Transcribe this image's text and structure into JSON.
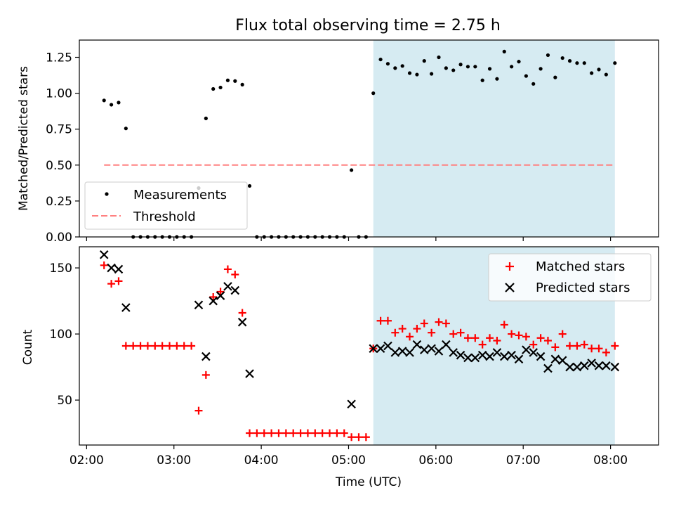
{
  "title": "Flux total observing time = 2.75 h",
  "chart_data": [
    {
      "type": "scatter",
      "ylabel": "Matched/Predicted stars",
      "ylim": [
        0,
        1.37
      ],
      "yticks": [
        "0.00",
        "0.25",
        "0.50",
        "0.75",
        "1.00",
        "1.25"
      ],
      "ytick_values": [
        0,
        0.25,
        0.5,
        0.75,
        1.0,
        1.25
      ],
      "legend": {
        "location": "lower left",
        "measurements_label": "Measurements",
        "threshold_label": "Threshold"
      },
      "threshold": {
        "value": 0.5,
        "x_start": "02:12",
        "x_end": "08:03",
        "color": "#ff8080"
      },
      "shaded_interval": {
        "start": "05:17",
        "end": "08:03",
        "color": "#add8e6"
      },
      "series": [
        {
          "name": "Measurements",
          "color": "#000000",
          "points": [
            [
              "02:12",
              0.95
            ],
            [
              "02:17",
              0.92
            ],
            [
              "02:22",
              0.935
            ],
            [
              "02:27",
              0.755
            ],
            [
              "02:32",
              0.0
            ],
            [
              "02:37",
              0.0
            ],
            [
              "02:42",
              0.0
            ],
            [
              "02:47",
              0.0
            ],
            [
              "02:52",
              0.0
            ],
            [
              "02:57",
              0.0
            ],
            [
              "03:02",
              0.0
            ],
            [
              "03:07",
              0.0
            ],
            [
              "03:12",
              0.0
            ],
            [
              "03:17",
              0.34
            ],
            [
              "03:22",
              0.825
            ],
            [
              "03:27",
              1.03
            ],
            [
              "03:32",
              1.04
            ],
            [
              "03:37",
              1.09
            ],
            [
              "03:42",
              1.085
            ],
            [
              "03:47",
              1.06
            ],
            [
              "03:52",
              0.355
            ],
            [
              "03:57",
              0.0
            ],
            [
              "04:02",
              0.0
            ],
            [
              "04:07",
              0.0
            ],
            [
              "04:12",
              0.0
            ],
            [
              "04:17",
              0.0
            ],
            [
              "04:22",
              0.0
            ],
            [
              "04:27",
              0.0
            ],
            [
              "04:32",
              0.0
            ],
            [
              "04:37",
              0.0
            ],
            [
              "04:42",
              0.0
            ],
            [
              "04:47",
              0.0
            ],
            [
              "04:52",
              0.0
            ],
            [
              "04:57",
              0.0
            ],
            [
              "05:02",
              0.465
            ],
            [
              "05:07",
              0.0
            ],
            [
              "05:12",
              0.0
            ],
            [
              "05:17",
              1.0
            ],
            [
              "05:22",
              1.235
            ],
            [
              "05:27",
              1.205
            ],
            [
              "05:32",
              1.175
            ],
            [
              "05:37",
              1.19
            ],
            [
              "05:42",
              1.14
            ],
            [
              "05:47",
              1.13
            ],
            [
              "05:52",
              1.225
            ],
            [
              "05:57",
              1.135
            ],
            [
              "06:02",
              1.25
            ],
            [
              "06:07",
              1.175
            ],
            [
              "06:12",
              1.16
            ],
            [
              "06:17",
              1.2
            ],
            [
              "06:22",
              1.185
            ],
            [
              "06:27",
              1.185
            ],
            [
              "06:32",
              1.09
            ],
            [
              "06:37",
              1.17
            ],
            [
              "06:42",
              1.1
            ],
            [
              "06:47",
              1.29
            ],
            [
              "06:52",
              1.185
            ],
            [
              "06:57",
              1.22
            ],
            [
              "07:02",
              1.12
            ],
            [
              "07:07",
              1.065
            ],
            [
              "07:12",
              1.17
            ],
            [
              "07:17",
              1.265
            ],
            [
              "07:22",
              1.11
            ],
            [
              "07:27",
              1.245
            ],
            [
              "07:32",
              1.225
            ],
            [
              "07:37",
              1.21
            ],
            [
              "07:42",
              1.21
            ],
            [
              "07:47",
              1.14
            ],
            [
              "07:52",
              1.165
            ],
            [
              "07:57",
              1.13
            ],
            [
              "08:03",
              1.21
            ]
          ]
        }
      ]
    },
    {
      "type": "scatter",
      "xlabel": "Time (UTC)",
      "ylabel": "Count",
      "ylim": [
        16,
        166
      ],
      "yticks": [
        "50",
        "100",
        "150"
      ],
      "ytick_values": [
        50,
        100,
        150
      ],
      "xticks": [
        "02:00",
        "03:00",
        "04:00",
        "05:00",
        "06:00",
        "07:00",
        "08:00"
      ],
      "xtick_values": [
        "02:00",
        "03:00",
        "04:00",
        "05:00",
        "06:00",
        "07:00",
        "08:00"
      ],
      "xlim": [
        "01:55",
        "08:33"
      ],
      "legend": {
        "location": "upper right",
        "matched_label": "Matched stars",
        "predicted_label": "Predicted stars"
      },
      "shaded_interval": {
        "start": "05:17",
        "end": "08:03",
        "color": "#add8e6"
      },
      "series": [
        {
          "name": "Matched stars",
          "marker": "plus",
          "color": "#ff0000",
          "points": [
            [
              "02:12",
              152
            ],
            [
              "02:17",
              138
            ],
            [
              "02:22",
              140
            ],
            [
              "02:27",
              91
            ],
            [
              "02:32",
              91
            ],
            [
              "02:37",
              91
            ],
            [
              "02:42",
              91
            ],
            [
              "02:47",
              91
            ],
            [
              "02:52",
              91
            ],
            [
              "02:57",
              91
            ],
            [
              "03:02",
              91
            ],
            [
              "03:07",
              91
            ],
            [
              "03:12",
              91
            ],
            [
              "03:17",
              42
            ],
            [
              "03:22",
              69
            ],
            [
              "03:27",
              128
            ],
            [
              "03:32",
              132
            ],
            [
              "03:37",
              149
            ],
            [
              "03:42",
              145
            ],
            [
              "03:47",
              116
            ],
            [
              "03:52",
              25
            ],
            [
              "03:57",
              25
            ],
            [
              "04:02",
              25
            ],
            [
              "04:07",
              25
            ],
            [
              "04:12",
              25
            ],
            [
              "04:17",
              25
            ],
            [
              "04:22",
              25
            ],
            [
              "04:27",
              25
            ],
            [
              "04:32",
              25
            ],
            [
              "04:37",
              25
            ],
            [
              "04:42",
              25
            ],
            [
              "04:47",
              25
            ],
            [
              "04:52",
              25
            ],
            [
              "04:57",
              25
            ],
            [
              "05:02",
              22
            ],
            [
              "05:07",
              22
            ],
            [
              "05:12",
              22
            ],
            [
              "05:17",
              89
            ],
            [
              "05:22",
              110
            ],
            [
              "05:27",
              110
            ],
            [
              "05:32",
              101
            ],
            [
              "05:37",
              104
            ],
            [
              "05:42",
              98
            ],
            [
              "05:47",
              104
            ],
            [
              "05:52",
              108
            ],
            [
              "05:57",
              101
            ],
            [
              "06:02",
              109
            ],
            [
              "06:07",
              108
            ],
            [
              "06:12",
              100
            ],
            [
              "06:17",
              101
            ],
            [
              "06:22",
              97
            ],
            [
              "06:27",
              97
            ],
            [
              "06:32",
              92
            ],
            [
              "06:37",
              97
            ],
            [
              "06:42",
              95
            ],
            [
              "06:47",
              107
            ],
            [
              "06:52",
              100
            ],
            [
              "06:57",
              99
            ],
            [
              "07:02",
              98
            ],
            [
              "07:07",
              92
            ],
            [
              "07:12",
              97
            ],
            [
              "07:17",
              95
            ],
            [
              "07:22",
              90
            ],
            [
              "07:27",
              100
            ],
            [
              "07:32",
              91
            ],
            [
              "07:37",
              91
            ],
            [
              "07:42",
              92
            ],
            [
              "07:47",
              89
            ],
            [
              "07:52",
              89
            ],
            [
              "07:57",
              86
            ],
            [
              "08:03",
              91
            ]
          ]
        },
        {
          "name": "Predicted stars",
          "marker": "x",
          "color": "#000000",
          "points": [
            [
              "02:12",
              160
            ],
            [
              "02:17",
              150
            ],
            [
              "02:22",
              149
            ],
            [
              "02:27",
              120
            ],
            [
              "03:17",
              122
            ],
            [
              "03:22",
              83
            ],
            [
              "03:27",
              125
            ],
            [
              "03:32",
              129
            ],
            [
              "03:37",
              136
            ],
            [
              "03:42",
              133
            ],
            [
              "03:47",
              109
            ],
            [
              "03:52",
              70
            ],
            [
              "05:02",
              47
            ],
            [
              "05:17",
              89
            ],
            [
              "05:22",
              89
            ],
            [
              "05:27",
              91
            ],
            [
              "05:32",
              86
            ],
            [
              "05:37",
              87
            ],
            [
              "05:42",
              86
            ],
            [
              "05:47",
              92
            ],
            [
              "05:52",
              88
            ],
            [
              "05:57",
              89
            ],
            [
              "06:02",
              87
            ],
            [
              "06:07",
              92
            ],
            [
              "06:12",
              86
            ],
            [
              "06:17",
              84
            ],
            [
              "06:22",
              82
            ],
            [
              "06:27",
              82
            ],
            [
              "06:32",
              84
            ],
            [
              "06:37",
              83
            ],
            [
              "06:42",
              86
            ],
            [
              "06:47",
              83
            ],
            [
              "06:52",
              84
            ],
            [
              "06:57",
              81
            ],
            [
              "07:02",
              88
            ],
            [
              "07:07",
              86
            ],
            [
              "07:12",
              83
            ],
            [
              "07:17",
              74
            ],
            [
              "07:22",
              81
            ],
            [
              "07:27",
              80
            ],
            [
              "07:32",
              75
            ],
            [
              "07:37",
              75
            ],
            [
              "07:42",
              76
            ],
            [
              "07:47",
              78
            ],
            [
              "07:52",
              76
            ],
            [
              "07:57",
              76
            ],
            [
              "08:03",
              75
            ]
          ]
        }
      ]
    }
  ]
}
